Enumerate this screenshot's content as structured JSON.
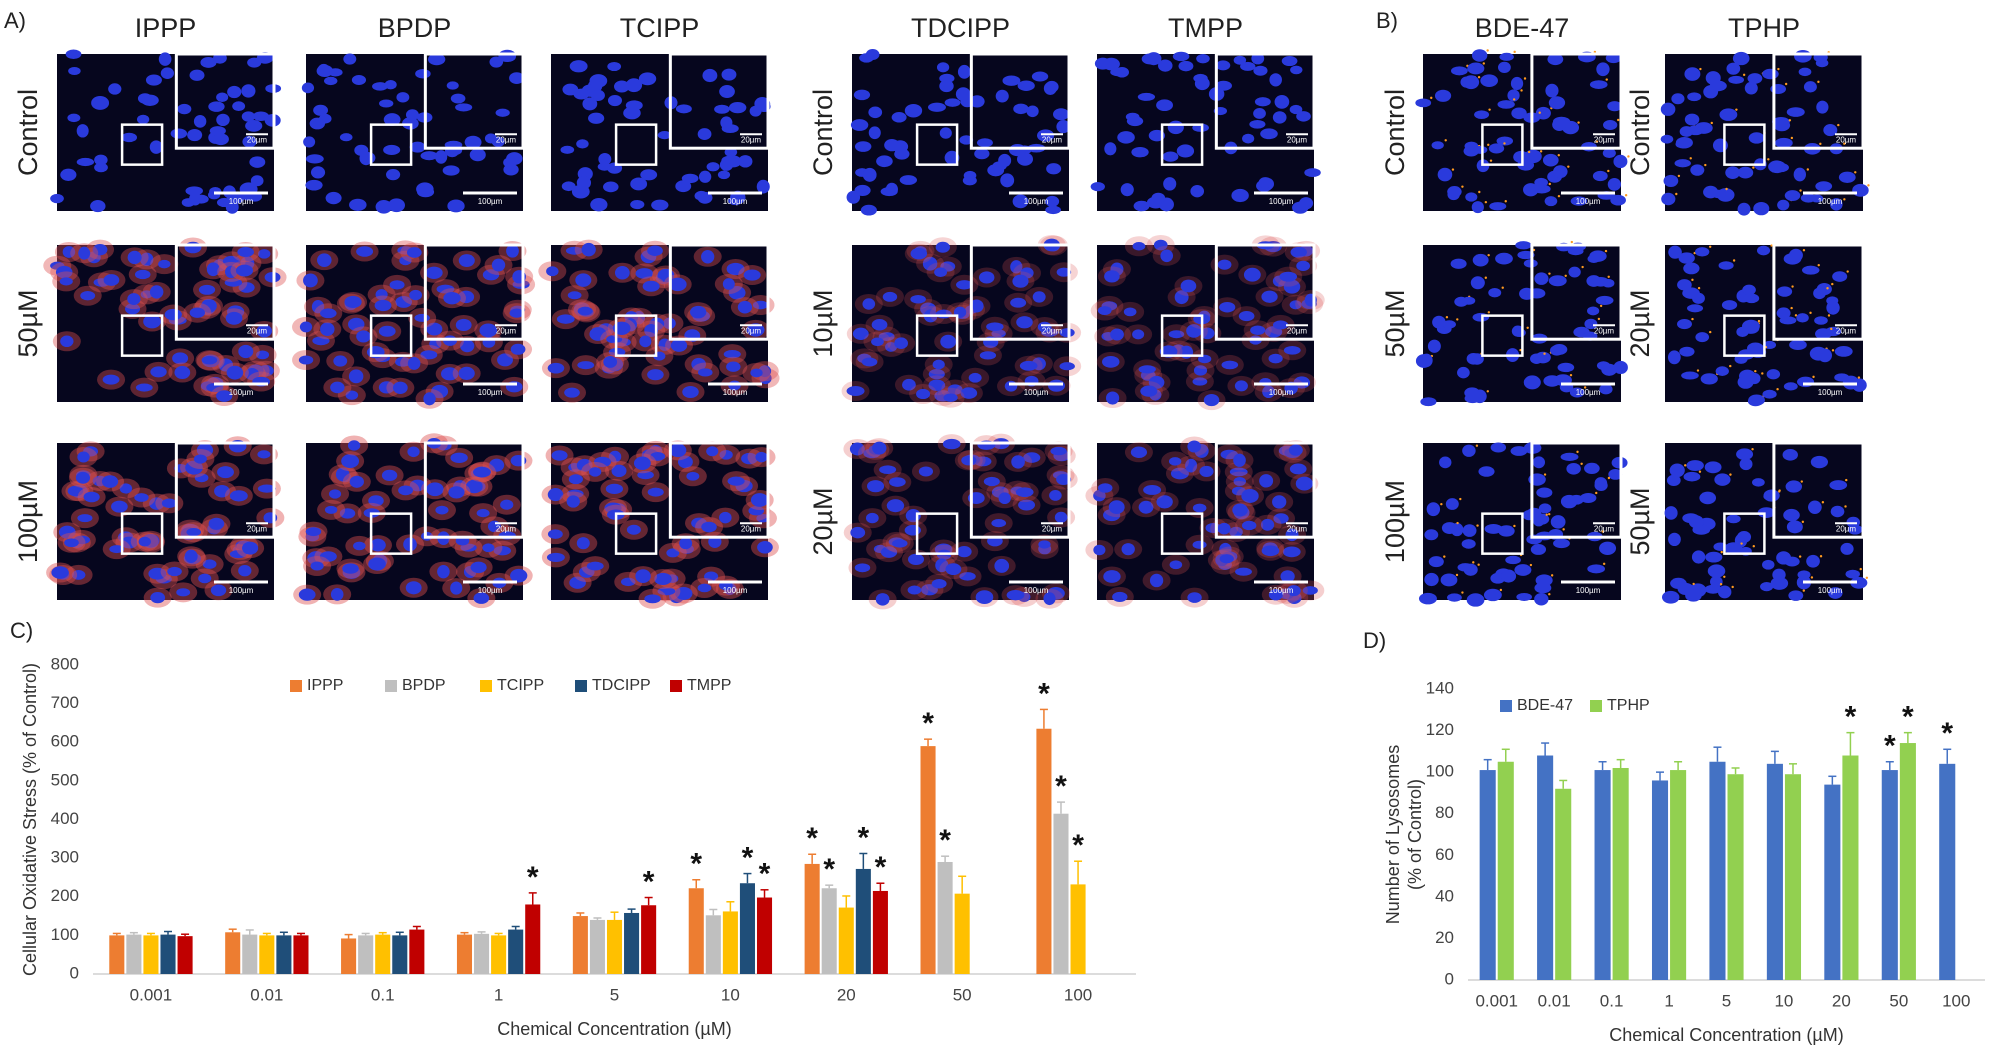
{
  "figure": {
    "panels": [
      {
        "label": "A)",
        "groups": [
          {
            "columns": [
              "IPPP",
              "BPDP",
              "TCIPP"
            ],
            "rows": [
              "Control",
              "50µM",
              "100µM"
            ]
          },
          {
            "columns": [
              "TDCIPP",
              "TMPP"
            ],
            "rows": [
              "Control",
              "10µM",
              "20µM"
            ]
          }
        ]
      },
      {
        "label": "B)",
        "groups": [
          {
            "columns": [
              "BDE-47"
            ],
            "rows": [
              "Control",
              "50µM",
              "100µM"
            ]
          },
          {
            "columns": [
              "TPHP"
            ],
            "rows": [
              "Control",
              "20µM",
              "50µM"
            ]
          }
        ]
      }
    ],
    "scale_bar_labels": [
      "100µm",
      "20µm"
    ]
  },
  "chart_data": [
    {
      "type": "bar",
      "panel_label": "C)",
      "x_label": "Chemical Concentration (µM)",
      "y_label": [
        "Cellular Oxidative Stress (% of Control)"
      ],
      "categories": [
        "0.001",
        "0.01",
        "0.1",
        "1",
        "5",
        "10",
        "20",
        "50",
        "100"
      ],
      "ylim": [
        0,
        800
      ],
      "yticks": [
        0,
        100,
        200,
        300,
        400,
        500,
        600,
        700,
        800
      ],
      "legend": "top",
      "significance_label": "*",
      "series": [
        {
          "name": "IPPP",
          "color": "#ed7d31",
          "values": [
            100,
            108,
            92,
            102,
            150,
            222,
            285,
            590,
            635
          ],
          "errors": [
            5,
            8,
            10,
            5,
            8,
            22,
            25,
            18,
            50
          ],
          "significant": [
            false,
            false,
            false,
            false,
            false,
            true,
            true,
            true,
            true
          ]
        },
        {
          "name": "BPDP",
          "color": "#bfbfbf",
          "values": [
            102,
            102,
            100,
            104,
            140,
            152,
            222,
            290,
            415
          ],
          "errors": [
            5,
            12,
            5,
            5,
            5,
            15,
            8,
            15,
            30
          ],
          "significant": [
            false,
            false,
            false,
            false,
            false,
            false,
            true,
            true,
            true
          ]
        },
        {
          "name": "TCIPP",
          "color": "#ffc000",
          "values": [
            100,
            100,
            102,
            100,
            140,
            162,
            172,
            208,
            232
          ],
          "errors": [
            5,
            5,
            5,
            5,
            20,
            25,
            30,
            45,
            60
          ],
          "significant": [
            false,
            false,
            false,
            false,
            false,
            false,
            false,
            false,
            true
          ]
        },
        {
          "name": "TDCIPP",
          "color": "#1f4e79",
          "values": [
            102,
            100,
            100,
            115,
            158,
            235,
            272,
            null,
            null
          ],
          "errors": [
            8,
            8,
            8,
            8,
            10,
            25,
            40,
            null,
            null
          ],
          "significant": [
            false,
            false,
            false,
            false,
            false,
            true,
            true,
            false,
            false
          ]
        },
        {
          "name": "TMPP",
          "color": "#c00000",
          "values": [
            98,
            100,
            115,
            180,
            178,
            198,
            215,
            null,
            null
          ],
          "errors": [
            5,
            5,
            8,
            30,
            20,
            20,
            20,
            null,
            null
          ],
          "significant": [
            false,
            false,
            false,
            true,
            true,
            true,
            true,
            false,
            false
          ]
        }
      ]
    },
    {
      "type": "bar",
      "panel_label": "D)",
      "x_label": "Chemical Concentration (µM)",
      "y_label": [
        "Number of Lysosomes",
        "(% of Control)"
      ],
      "categories": [
        "0.001",
        "0.01",
        "0.1",
        "1",
        "5",
        "10",
        "20",
        "50",
        "100"
      ],
      "ylim": [
        0,
        140
      ],
      "yticks": [
        0,
        20,
        40,
        60,
        80,
        100,
        120,
        140
      ],
      "legend": "top-left",
      "significance_label": "*",
      "series": [
        {
          "name": "BDE-47",
          "color": "#4472c4",
          "values": [
            101,
            108,
            101,
            96,
            105,
            104,
            94,
            101,
            104
          ],
          "errors": [
            5,
            6,
            4,
            4,
            7,
            6,
            4,
            4,
            7
          ],
          "significant": [
            false,
            false,
            false,
            false,
            false,
            false,
            false,
            true,
            true
          ]
        },
        {
          "name": "TPHP",
          "color": "#92d050",
          "values": [
            105,
            92,
            102,
            101,
            99,
            99,
            108,
            114,
            null
          ],
          "errors": [
            6,
            4,
            4,
            4,
            3,
            5,
            11,
            5,
            null
          ],
          "significant": [
            false,
            false,
            false,
            false,
            false,
            false,
            true,
            true,
            false
          ]
        }
      ]
    }
  ]
}
